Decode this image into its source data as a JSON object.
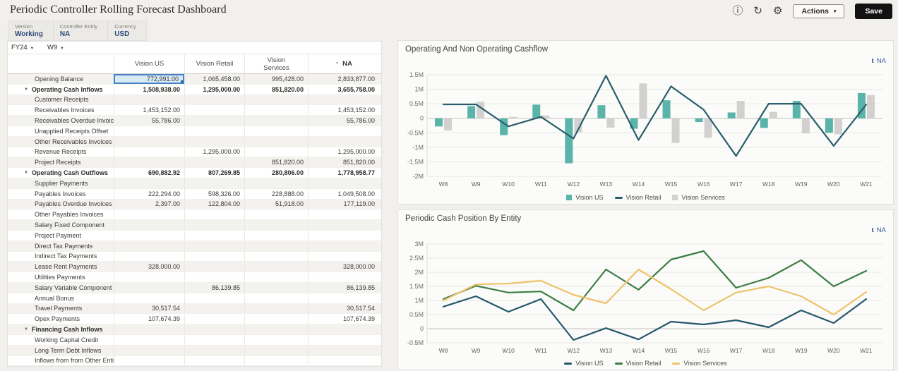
{
  "header": {
    "title": "Periodic Controller Rolling Forecast Dashboard",
    "actions_label": "Actions",
    "save_label": "Save"
  },
  "icons": {
    "info": "ⓘ",
    "refresh": "↻",
    "settings": "⚙",
    "caret": "▾",
    "collapse": "▼",
    "filter": "▼",
    "drill": "t"
  },
  "pov": {
    "items": [
      {
        "label": "Version",
        "value": "Working"
      },
      {
        "label": "Controller Entity",
        "value": "NA"
      },
      {
        "label": "Currency",
        "value": "USD"
      }
    ]
  },
  "filters": {
    "year": "FY24",
    "week": "W9"
  },
  "grid": {
    "columns": [
      "Vision US",
      "Vision Retail",
      "Vision Services",
      "NA"
    ],
    "selected": {
      "row": 0,
      "col": 0
    },
    "rows": [
      {
        "label": "Opening Balance",
        "type": "child",
        "values": [
          "772,991.00",
          "1,065,458.00",
          "995,428.00",
          "2,833,877.00"
        ]
      },
      {
        "label": "Operating Cash Inflows",
        "type": "parent",
        "values": [
          "1,508,938.00",
          "1,295,000.00",
          "851,820.00",
          "3,655,758.00"
        ]
      },
      {
        "label": "Customer Receipts",
        "type": "child",
        "values": [
          "",
          "",
          "",
          ""
        ]
      },
      {
        "label": "Receivables Invoices",
        "type": "child",
        "values": [
          "1,453,152.00",
          "",
          "",
          "1,453,152.00"
        ]
      },
      {
        "label": "Receivables Overdue Invoices",
        "type": "child",
        "values": [
          "55,786.00",
          "",
          "",
          "55,786.00"
        ]
      },
      {
        "label": "Unapplied Receipts Offset",
        "type": "child",
        "values": [
          "",
          "",
          "",
          ""
        ]
      },
      {
        "label": "Other Receivables Invoices",
        "type": "child",
        "values": [
          "",
          "",
          "",
          ""
        ]
      },
      {
        "label": "Revenue Receipts",
        "type": "child",
        "values": [
          "",
          "1,295,000.00",
          "",
          "1,295,000.00"
        ]
      },
      {
        "label": "Project Receipts",
        "type": "child",
        "values": [
          "",
          "",
          "851,820.00",
          "851,820.00"
        ]
      },
      {
        "label": "Operating Cash Outflows",
        "type": "parent",
        "values": [
          "690,882.92",
          "807,269.85",
          "280,806.00",
          "1,778,958.77"
        ]
      },
      {
        "label": "Supplier Payments",
        "type": "child",
        "values": [
          "",
          "",
          "",
          ""
        ]
      },
      {
        "label": "Payables Invoices",
        "type": "child",
        "values": [
          "222,294.00",
          "598,326.00",
          "228,888.00",
          "1,049,508.00"
        ]
      },
      {
        "label": "Payables Overdue Invoices",
        "type": "child",
        "values": [
          "2,397.00",
          "122,804.00",
          "51,918.00",
          "177,119.00"
        ]
      },
      {
        "label": "Other Payables Invoices",
        "type": "child",
        "values": [
          "",
          "",
          "",
          ""
        ]
      },
      {
        "label": "Salary Fixed Component",
        "type": "child",
        "values": [
          "",
          "",
          "",
          ""
        ]
      },
      {
        "label": "Project Payment",
        "type": "child",
        "values": [
          "",
          "",
          "",
          ""
        ]
      },
      {
        "label": "Direct Tax Payments",
        "type": "child",
        "values": [
          "",
          "",
          "",
          ""
        ]
      },
      {
        "label": "Indirect Tax Payments",
        "type": "child",
        "values": [
          "",
          "",
          "",
          ""
        ]
      },
      {
        "label": "Lease Rent Payments",
        "type": "child",
        "values": [
          "328,000.00",
          "",
          "",
          "328,000.00"
        ]
      },
      {
        "label": "Utilities Payments",
        "type": "child",
        "values": [
          "",
          "",
          "",
          ""
        ]
      },
      {
        "label": "Salary Variable Component",
        "type": "child",
        "values": [
          "",
          "86,139.85",
          "",
          "86,139.85"
        ]
      },
      {
        "label": "Annual Bonus",
        "type": "child",
        "values": [
          "",
          "",
          "",
          ""
        ]
      },
      {
        "label": "Travel Payments",
        "type": "child",
        "values": [
          "30,517.54",
          "",
          "",
          "30,517.54"
        ]
      },
      {
        "label": "Opex Payments",
        "type": "child",
        "values": [
          "107,674.39",
          "",
          "",
          "107,674.39"
        ]
      },
      {
        "label": "Financing Cash Inflows",
        "type": "parent",
        "values": [
          "",
          "",
          "",
          ""
        ]
      },
      {
        "label": "Working Capital Credit",
        "type": "child",
        "values": [
          "",
          "",
          "",
          ""
        ]
      },
      {
        "label": "Long Term Debt Inflows",
        "type": "child",
        "values": [
          "",
          "",
          "",
          ""
        ]
      },
      {
        "label": "Inflows from from Other Entities",
        "type": "child",
        "values": [
          "",
          "",
          "",
          ""
        ]
      }
    ]
  },
  "chart_data": [
    {
      "type": "combo",
      "title": "Operating And Non Operating Cashflow",
      "link_label": "NA",
      "categories": [
        "W8",
        "W9",
        "W10",
        "W11",
        "W12",
        "W13",
        "W14",
        "W15",
        "W16",
        "W17",
        "W18",
        "W19",
        "W20",
        "W21"
      ],
      "series": [
        {
          "name": "Vision US",
          "kind": "bar",
          "color": "#5ab4aa",
          "values": [
            -0.28,
            0.42,
            -0.58,
            0.47,
            -1.55,
            0.45,
            -0.36,
            0.62,
            -0.13,
            0.2,
            -0.33,
            0.6,
            -0.5,
            0.87
          ]
        },
        {
          "name": "Vision Retail",
          "kind": "line",
          "color": "#2a5c6b",
          "values": [
            0.48,
            0.48,
            -0.28,
            0.05,
            -0.7,
            1.47,
            -0.75,
            1.1,
            0.3,
            -1.3,
            0.5,
            0.5,
            -0.95,
            0.47
          ]
        },
        {
          "name": "Vision Services",
          "kind": "bar",
          "color": "#d2d1cf",
          "values": [
            -0.42,
            0.57,
            0.05,
            0.1,
            -0.48,
            -0.32,
            1.2,
            -0.85,
            -0.67,
            0.6,
            0.22,
            -0.52,
            -0.55,
            0.8
          ]
        }
      ],
      "ylim": [
        -2,
        1.5
      ],
      "ytick": 0.5,
      "unit": "M",
      "legend_position": "bottom",
      "grid": true
    },
    {
      "type": "line",
      "title": "Periodic Cash Position By Entity",
      "link_label": "NA",
      "categories": [
        "W8",
        "W9",
        "W10",
        "W11",
        "W12",
        "W13",
        "W14",
        "W15",
        "W16",
        "W17",
        "W18",
        "W19",
        "W20",
        "W21"
      ],
      "series": [
        {
          "name": "Vision US",
          "kind": "line",
          "color": "#24586a",
          "values": [
            0.78,
            1.15,
            0.6,
            1.05,
            -0.4,
            0.02,
            -0.38,
            0.25,
            0.15,
            0.3,
            0.05,
            0.65,
            0.2,
            1.05
          ]
        },
        {
          "name": "Vision Retail",
          "kind": "line",
          "color": "#3b7d45",
          "values": [
            1.05,
            1.52,
            1.28,
            1.32,
            0.65,
            2.1,
            1.38,
            2.45,
            2.75,
            1.45,
            1.8,
            2.43,
            1.5,
            2.05
          ]
        },
        {
          "name": "Vision Services",
          "kind": "line",
          "color": "#eec36a",
          "values": [
            1.0,
            1.57,
            1.6,
            1.7,
            1.2,
            0.9,
            2.1,
            1.4,
            0.65,
            1.28,
            1.5,
            1.15,
            0.5,
            1.3
          ]
        }
      ],
      "ylim": [
        -0.5,
        3
      ],
      "ytick": 0.5,
      "unit": "M",
      "legend_position": "bottom",
      "grid": true
    }
  ]
}
